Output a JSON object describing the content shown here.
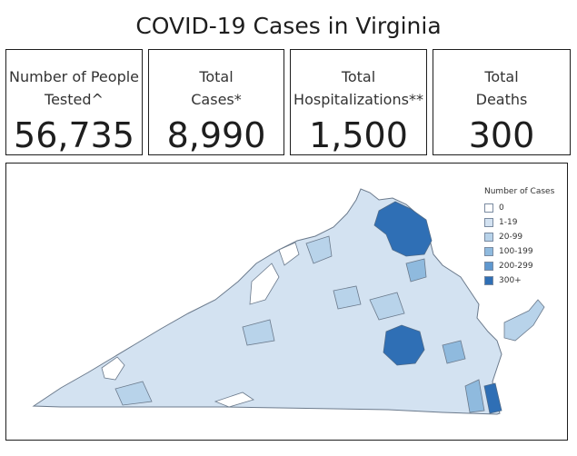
{
  "title": "COVID-19 Cases in Virginia",
  "cards": [
    {
      "label_line1": "Number of People",
      "label_line2": "Tested^",
      "value": "56,735"
    },
    {
      "label_line1": "Total",
      "label_line2": "Cases*",
      "value": "8,990"
    },
    {
      "label_line1": "Total",
      "label_line2": "Hospitalizations**",
      "value": "1,500"
    },
    {
      "label_line1": "Total",
      "label_line2": "Deaths",
      "value": "300"
    }
  ],
  "legend": {
    "title": "Number of Cases",
    "items": [
      {
        "label": "0",
        "color": "#ffffff"
      },
      {
        "label": "1-19",
        "color": "#d3e2f1"
      },
      {
        "label": "20-99",
        "color": "#b8d3ea"
      },
      {
        "label": "100-199",
        "color": "#8fbade"
      },
      {
        "label": "200-299",
        "color": "#5f98cf"
      },
      {
        "label": "300+",
        "color": "#2f6fb5"
      }
    ]
  }
}
